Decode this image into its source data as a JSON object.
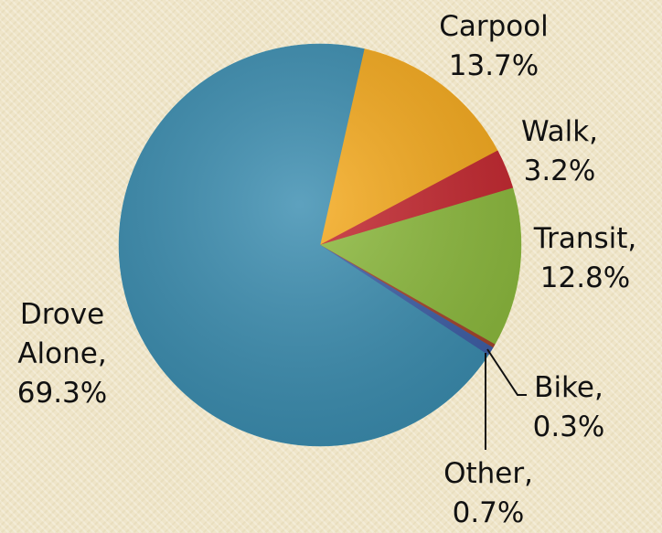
{
  "chart_data": {
    "type": "pie",
    "categories": [
      "Carpool",
      "Walk,",
      "Transit,",
      "Bike,",
      "Other,",
      "Drove Alone,"
    ],
    "values": [
      13.7,
      3.2,
      12.8,
      0.3,
      0.7,
      69.3
    ],
    "value_labels": [
      "13.7%",
      "3.2%",
      "12.8%",
      "0.3%",
      "0.7%",
      "69.3%"
    ],
    "colors": [
      "#f6aa1c",
      "#c4262e",
      "#8cba3c",
      "#a4432a",
      "#3d5ea6",
      "#3a8db0"
    ]
  }
}
